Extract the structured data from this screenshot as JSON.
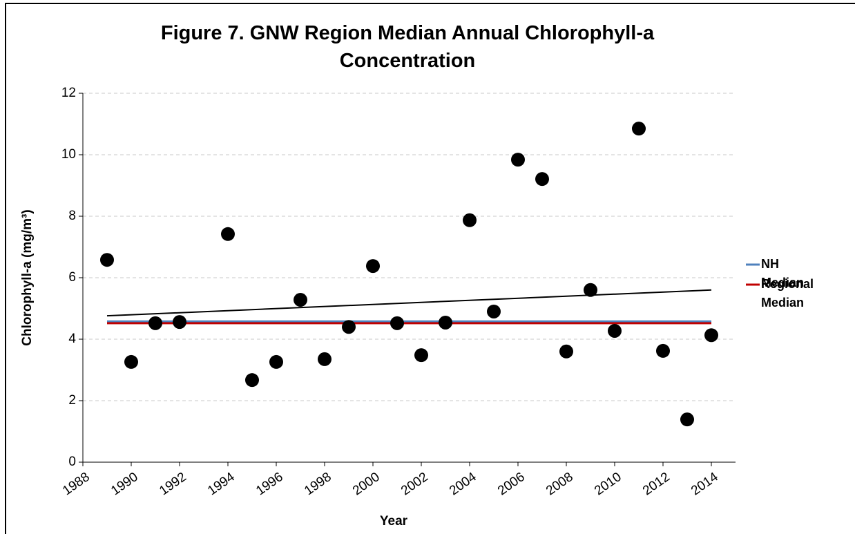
{
  "chart_data": {
    "type": "scatter",
    "title": "Figure 7. GNW Region Median Annual Chlorophyll-a Concentration",
    "x_label": "Year",
    "y_label": "Chlorophyll-a (mg/m³)",
    "x": [
      1989,
      1990,
      1991,
      1992,
      1994,
      1995,
      1996,
      1997,
      1998,
      1999,
      2000,
      2001,
      2002,
      2003,
      2004,
      2005,
      2006,
      2007,
      2008,
      2009,
      2010,
      2011,
      2012,
      2013,
      2014
    ],
    "series": [
      {
        "color": "#000000",
        "values": [
          6.58,
          3.26,
          4.52,
          4.56,
          7.42,
          2.67,
          3.26,
          5.28,
          3.35,
          4.4,
          6.38,
          4.52,
          3.48,
          4.54,
          7.87,
          4.9,
          9.84,
          9.21,
          3.6,
          5.6,
          4.27,
          10.85,
          3.62,
          1.39,
          4.13
        ]
      }
    ],
    "reference_lines": [
      {
        "name": "NH Median",
        "color": "#4f81bd",
        "value": 4.58
      },
      {
        "name": "Regional Median",
        "color": "#c00000",
        "value": 4.52
      }
    ],
    "trendline": {
      "color": "#000000",
      "x": [
        1989,
        2014
      ],
      "values": [
        4.76,
        5.6
      ]
    },
    "xlim": [
      1988,
      2015
    ],
    "xticks": [
      1988,
      1990,
      1992,
      1994,
      1996,
      1998,
      2000,
      2002,
      2004,
      2006,
      2008,
      2010,
      2012,
      2014
    ],
    "ylim": [
      0,
      12
    ],
    "yticks": [
      0,
      2,
      4,
      6,
      8,
      10,
      12
    ],
    "grid": true
  }
}
